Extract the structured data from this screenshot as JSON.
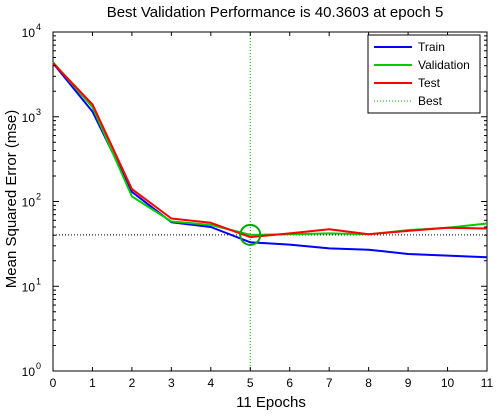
{
  "chart_data": {
    "type": "line",
    "title": "Best Validation Performance is 40.3603 at epoch 5",
    "xlabel": "11 Epochs",
    "ylabel": "Mean Squared Error  (mse)",
    "xlim": [
      0,
      11
    ],
    "ylim": [
      1,
      10000
    ],
    "yscale": "log",
    "grid": false,
    "legend_position": "top-right",
    "x_ticks": [
      0,
      1,
      2,
      3,
      4,
      5,
      6,
      7,
      8,
      9,
      10,
      11
    ],
    "y_ticks": [
      {
        "value": 1,
        "base": "10",
        "exp": "0"
      },
      {
        "value": 10,
        "base": "10",
        "exp": "1"
      },
      {
        "value": 100,
        "base": "10",
        "exp": "2"
      },
      {
        "value": 1000,
        "base": "10",
        "exp": "3"
      },
      {
        "value": 10000,
        "base": "10",
        "exp": "4"
      }
    ],
    "x": [
      0,
      1,
      2,
      3,
      4,
      5,
      6,
      7,
      8,
      9,
      10,
      11
    ],
    "series": [
      {
        "name": "Train",
        "color": "#0000ff",
        "values": [
          4300,
          1150,
          130,
          57,
          50,
          33,
          31,
          28,
          27,
          24,
          23,
          22
        ]
      },
      {
        "name": "Validation",
        "color": "#00cc00",
        "values": [
          4400,
          1300,
          115,
          58,
          53,
          40.3603,
          41,
          42,
          41,
          46,
          49,
          55
        ]
      },
      {
        "name": "Test",
        "color": "#ff0000",
        "values": [
          4300,
          1400,
          140,
          63,
          56,
          38,
          42,
          47,
          41,
          45,
          49,
          48
        ]
      }
    ],
    "best": {
      "name": "Best",
      "epoch": 5,
      "value": 40.3603,
      "color": "#00aa00",
      "style": "dotted"
    }
  }
}
